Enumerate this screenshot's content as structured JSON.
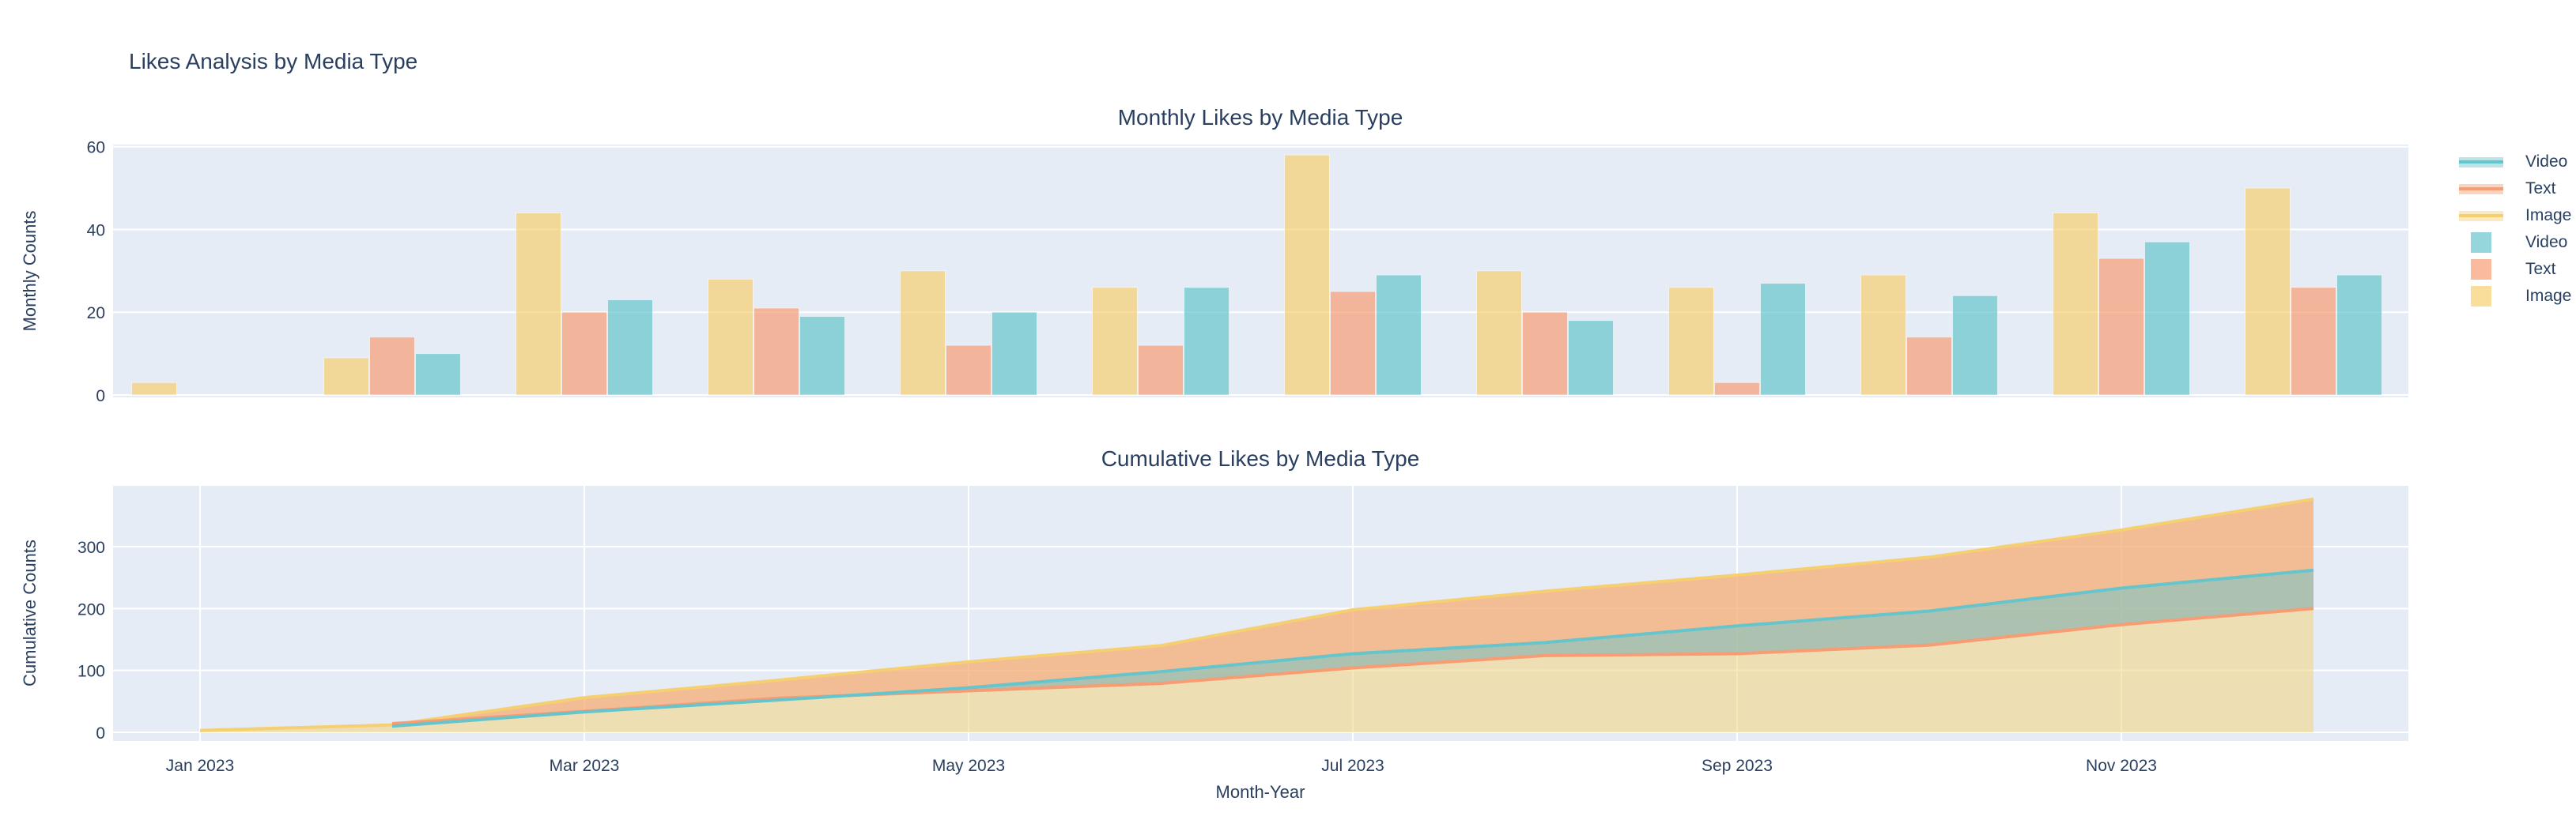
{
  "figure": {
    "title": "Likes Analysis by Media Type"
  },
  "colors": {
    "video": "#66C5CC",
    "text": "#F89C74",
    "image": "#F6CF71",
    "background_plot": "#e5ecf6",
    "grid": "#ffffff",
    "font": "#2a3f5f"
  },
  "chart_data": [
    {
      "type": "bar",
      "title": "Monthly Likes by Media Type",
      "ylabel": "Monthly Counts",
      "ylim": [
        0,
        61
      ],
      "yticks": [
        0,
        20,
        40,
        60
      ],
      "grid": "horizontal-only",
      "legend_position": "right",
      "categories": [
        "Jan 2023",
        "Feb 2023",
        "Mar 2023",
        "Apr 2023",
        "May 2023",
        "Jun 2023",
        "Jul 2023",
        "Aug 2023",
        "Sep 2023",
        "Oct 2023",
        "Nov 2023",
        "Dec 2023"
      ],
      "series": [
        {
          "name": "Image",
          "color": "#F6CF71",
          "values": [
            3,
            9,
            44,
            28,
            30,
            26,
            58,
            30,
            26,
            29,
            44,
            50
          ]
        },
        {
          "name": "Text",
          "color": "#F89C74",
          "values": [
            null,
            14,
            20,
            21,
            12,
            12,
            25,
            20,
            3,
            14,
            33,
            26
          ]
        },
        {
          "name": "Video",
          "color": "#66C5CC",
          "values": [
            null,
            10,
            23,
            19,
            20,
            26,
            29,
            18,
            27,
            24,
            37,
            29
          ]
        }
      ]
    },
    {
      "type": "area",
      "title": "Cumulative Likes by Media Type",
      "ylabel": "Cumulative Counts",
      "xlabel": "Month-Year",
      "ylim": [
        0,
        398
      ],
      "yticks": [
        0,
        100,
        200,
        300
      ],
      "grid": "both",
      "x": [
        "Jan 2023",
        "Feb 2023",
        "Mar 2023",
        "Apr 2023",
        "May 2023",
        "Jun 2023",
        "Jul 2023",
        "Aug 2023",
        "Sep 2023",
        "Oct 2023",
        "Nov 2023",
        "Dec 2023"
      ],
      "xticks": [
        "Jan 2023",
        "Mar 2023",
        "May 2023",
        "Jul 2023",
        "Sep 2023",
        "Nov 2023"
      ],
      "xtick_indices": [
        0,
        2,
        4,
        6,
        8,
        10
      ],
      "series": [
        {
          "name": "Image",
          "color": "#F6CF71",
          "values": [
            3,
            12,
            56,
            84,
            114,
            140,
            198,
            228,
            254,
            283,
            327,
            377
          ]
        },
        {
          "name": "Text",
          "color": "#F89C74",
          "values": [
            null,
            14,
            34,
            55,
            67,
            79,
            104,
            124,
            127,
            141,
            174,
            200
          ]
        },
        {
          "name": "Video",
          "color": "#66C5CC",
          "values": [
            null,
            10,
            33,
            52,
            72,
            98,
            127,
            145,
            172,
            196,
            233,
            262
          ]
        }
      ]
    }
  ],
  "legend": {
    "items": [
      {
        "label": "Video",
        "type": "line",
        "color": "#66C5CC"
      },
      {
        "label": "Text",
        "type": "line",
        "color": "#F89C74"
      },
      {
        "label": "Image",
        "type": "line",
        "color": "#F6CF71"
      },
      {
        "label": "Video",
        "type": "square",
        "color": "#66C5CC"
      },
      {
        "label": "Text",
        "type": "square",
        "color": "#F89C74"
      },
      {
        "label": "Image",
        "type": "square",
        "color": "#F6CF71"
      }
    ]
  }
}
